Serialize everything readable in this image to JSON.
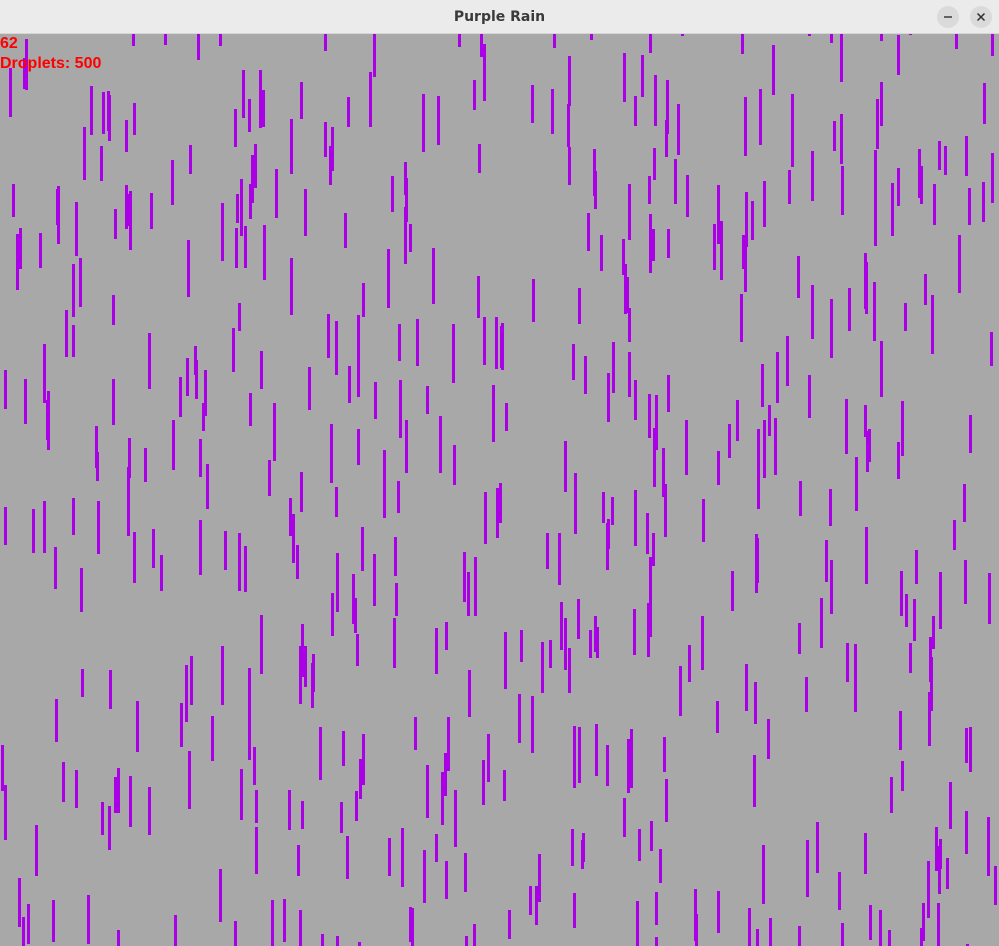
{
  "window": {
    "title": "Purple Rain"
  },
  "controls": {
    "minimize_icon": "minimize-icon",
    "close_icon": "close-icon"
  },
  "hud": {
    "fps_value": "62",
    "droplets_text": "Droplets: 500"
  },
  "colors": {
    "background": "#a8a8a8",
    "droplet": "#a900e6",
    "hud_text": "#ff0000",
    "titlebar": "#ebebeb"
  }
}
